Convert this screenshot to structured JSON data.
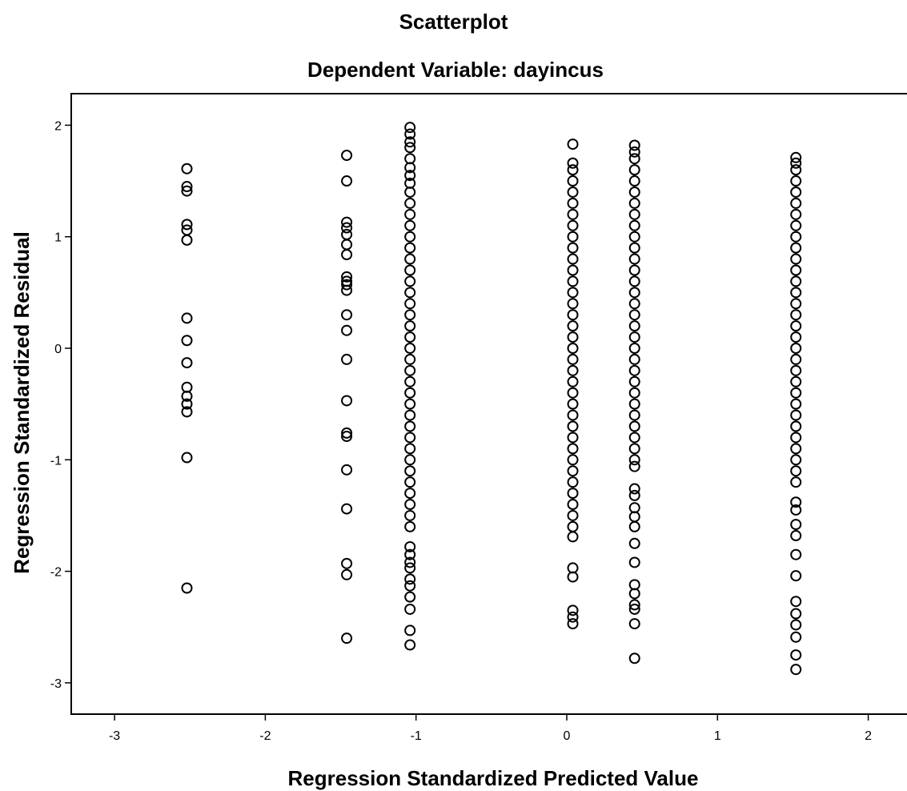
{
  "chart_data": {
    "type": "scatter",
    "title": "Scatterplot",
    "subtitle": "Dependent Variable: dayincus",
    "xlabel": "Regression Standardized Predicted Value",
    "ylabel": "Regression Standardized Residual",
    "xlim": [
      -3.25,
      2.1
    ],
    "ylim": [
      -3.3,
      2.3
    ],
    "xticks": [
      "-3",
      "-2",
      "-1",
      "0",
      "1",
      "2"
    ],
    "yticks": [
      "-3",
      "-2",
      "-1",
      "0",
      "1",
      "2"
    ],
    "grid": false,
    "marker": "open-circle",
    "series": [
      {
        "x": -2.52,
        "y": [
          1.61,
          1.45,
          1.41,
          1.11,
          1.06,
          0.97,
          0.27,
          0.07,
          -0.13,
          -0.35,
          -0.43,
          -0.5,
          -0.57,
          -0.98,
          -2.15
        ]
      },
      {
        "x": -1.46,
        "y": [
          1.73,
          1.5,
          1.13,
          1.08,
          1.02,
          0.93,
          0.84,
          0.64,
          0.6,
          0.57,
          0.52,
          0.3,
          0.16,
          -0.1,
          -0.47,
          -0.76,
          -0.79,
          -1.09,
          -1.44,
          -1.93,
          -2.03,
          -2.6
        ]
      },
      {
        "x": -1.04,
        "y": [
          1.98,
          1.92,
          1.85,
          1.8,
          1.7,
          1.62,
          1.55,
          1.48,
          1.4,
          1.3,
          1.2,
          1.1,
          1.0,
          0.9,
          0.8,
          0.7,
          0.6,
          0.5,
          0.4,
          0.3,
          0.2,
          0.1,
          0.0,
          -0.1,
          -0.2,
          -0.3,
          -0.4,
          -0.5,
          -0.6,
          -0.7,
          -0.8,
          -0.9,
          -1.0,
          -1.1,
          -1.2,
          -1.3,
          -1.4,
          -1.5,
          -1.6,
          -1.78,
          -1.85,
          -1.92,
          -1.97,
          -2.07,
          -2.13,
          -2.23,
          -2.34,
          -2.53,
          -2.66
        ]
      },
      {
        "x": 0.04,
        "y": [
          1.83,
          1.66,
          1.6,
          1.5,
          1.4,
          1.3,
          1.2,
          1.1,
          1.0,
          0.9,
          0.8,
          0.7,
          0.6,
          0.5,
          0.4,
          0.3,
          0.2,
          0.1,
          0.0,
          -0.1,
          -0.2,
          -0.3,
          -0.4,
          -0.5,
          -0.6,
          -0.7,
          -0.8,
          -0.9,
          -1.0,
          -1.1,
          -1.2,
          -1.3,
          -1.4,
          -1.5,
          -1.6,
          -1.69,
          -1.97,
          -2.05,
          -2.35,
          -2.41,
          -2.47
        ]
      },
      {
        "x": 0.45,
        "y": [
          1.82,
          1.76,
          1.7,
          1.6,
          1.5,
          1.4,
          1.3,
          1.2,
          1.1,
          1.0,
          0.9,
          0.8,
          0.7,
          0.6,
          0.5,
          0.4,
          0.3,
          0.2,
          0.1,
          0.0,
          -0.1,
          -0.2,
          -0.3,
          -0.4,
          -0.5,
          -0.6,
          -0.7,
          -0.8,
          -0.9,
          -1.0,
          -1.06,
          -1.26,
          -1.32,
          -1.43,
          -1.51,
          -1.6,
          -1.75,
          -1.92,
          -2.12,
          -2.2,
          -2.3,
          -2.34,
          -2.47,
          -2.78
        ]
      },
      {
        "x": 1.52,
        "y": [
          1.71,
          1.66,
          1.6,
          1.5,
          1.4,
          1.3,
          1.2,
          1.1,
          1.0,
          0.9,
          0.8,
          0.7,
          0.6,
          0.5,
          0.4,
          0.3,
          0.2,
          0.1,
          0.0,
          -0.1,
          -0.2,
          -0.3,
          -0.4,
          -0.5,
          -0.6,
          -0.7,
          -0.8,
          -0.9,
          -1.0,
          -1.1,
          -1.2,
          -1.38,
          -1.45,
          -1.58,
          -1.68,
          -1.85,
          -2.04,
          -2.27,
          -2.38,
          -2.48,
          -2.59,
          -2.75,
          -2.88
        ]
      }
    ]
  }
}
